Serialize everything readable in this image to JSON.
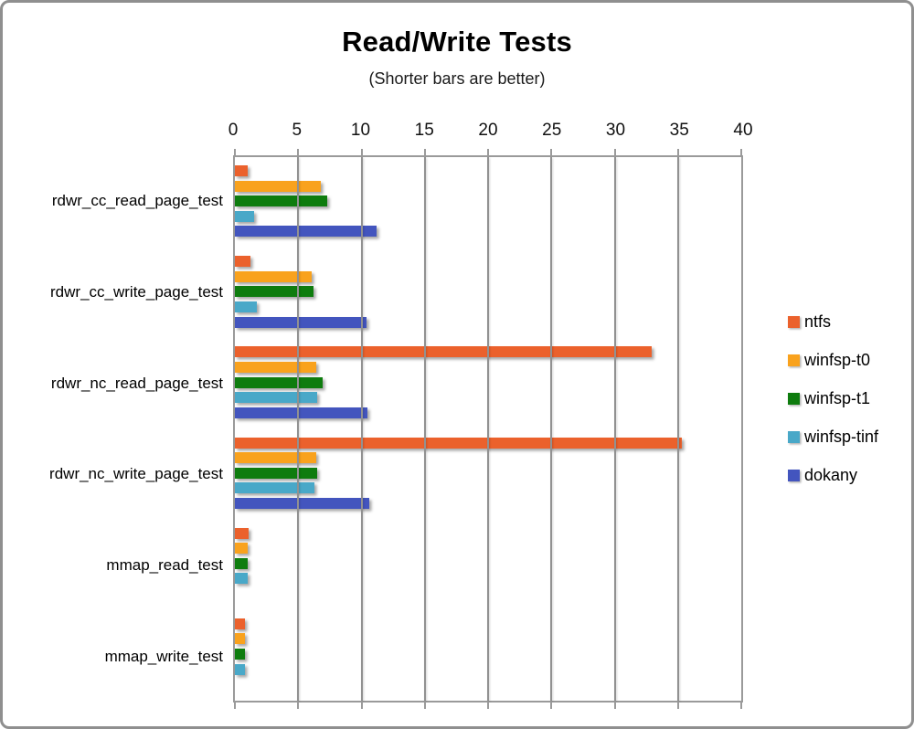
{
  "title": "Read/Write Tests",
  "subtitle": "(Shorter bars are better)",
  "frame_color": "#8f8f8f",
  "chart_data": {
    "type": "bar",
    "orientation": "horizontal",
    "title": "Read/Write Tests",
    "subtitle": "(Shorter bars are better)",
    "categories": [
      "rdwr_cc_read_page_test",
      "rdwr_cc_write_page_test",
      "rdwr_nc_read_page_test",
      "rdwr_nc_write_page_test",
      "mmap_read_test",
      "mmap_write_test"
    ],
    "series": [
      {
        "name": "ntfs",
        "color": "#EB612C",
        "values": [
          1.0,
          1.2,
          32.9,
          35.3,
          1.1,
          0.8
        ]
      },
      {
        "name": "winfsp-t0",
        "color": "#F9A21D",
        "values": [
          6.8,
          6.1,
          6.4,
          6.4,
          1.0,
          0.8
        ]
      },
      {
        "name": "winfsp-t1",
        "color": "#0E7C0E",
        "values": [
          7.3,
          6.2,
          6.9,
          6.5,
          1.0,
          0.8
        ]
      },
      {
        "name": "winfsp-tinf",
        "color": "#49A8C8",
        "values": [
          1.5,
          1.7,
          6.5,
          6.3,
          1.0,
          0.8
        ]
      },
      {
        "name": "dokany",
        "color": "#4355BE",
        "values": [
          11.2,
          10.4,
          10.5,
          10.6,
          0,
          0
        ]
      }
    ],
    "x_axis": {
      "min": 0,
      "max": 40,
      "tick_interval": 5,
      "ticks": [
        "0",
        "5",
        "10",
        "15",
        "20",
        "25",
        "30",
        "35",
        "40"
      ]
    },
    "grid": true,
    "gridline_color": "#919191",
    "legend_position": "right",
    "legend_entries": [
      "ntfs",
      "winfsp-t0",
      "winfsp-t1",
      "winfsp-tinf",
      "dokany"
    ]
  }
}
